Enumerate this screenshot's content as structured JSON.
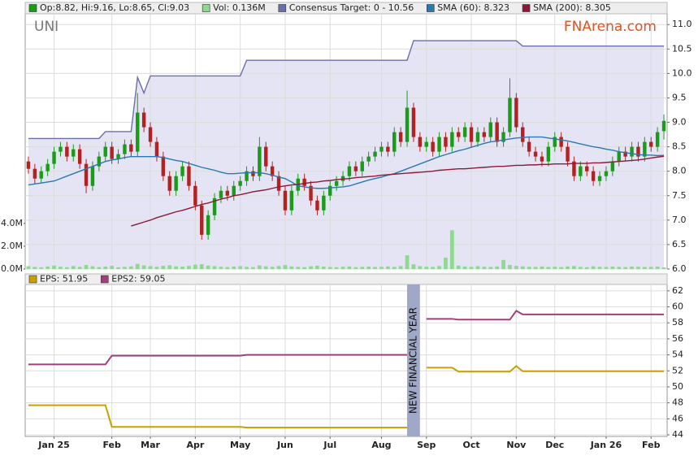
{
  "chart_data": [
    {
      "type": "candlestick",
      "ticker": "UNI",
      "watermark": "FNArena.com",
      "candles_name": "Op:8.82, Hi:9.16, Lo:8.65, Cl:9.03",
      "up_color": "#1a9b1a",
      "down_color": "#b22222",
      "open": [
        8.2,
        8.05,
        7.85,
        8.0,
        8.15,
        8.4,
        8.5,
        8.3,
        8.45,
        8.15,
        7.7,
        8.1,
        8.3,
        8.5,
        8.25,
        8.35,
        8.55,
        8.4,
        9.2,
        8.9,
        8.6,
        8.3,
        7.9,
        7.6,
        7.9,
        8.1,
        7.7,
        7.3,
        6.7,
        7.1,
        7.45,
        7.6,
        7.5,
        7.7,
        7.8,
        8.0,
        7.9,
        8.5,
        8.1,
        7.9,
        7.6,
        7.2,
        7.6,
        7.85,
        7.7,
        7.4,
        7.2,
        7.5,
        7.7,
        7.8,
        7.9,
        8.1,
        8.0,
        8.2,
        8.3,
        8.4,
        8.5,
        8.4,
        8.8,
        8.6,
        9.3,
        8.7,
        8.5,
        8.6,
        8.4,
        8.7,
        8.5,
        8.8,
        8.7,
        8.9,
        8.6,
        8.8,
        8.7,
        9.0,
        8.6,
        8.8,
        9.5,
        8.9,
        8.6,
        8.4,
        8.3,
        8.2,
        8.5,
        8.7,
        8.5,
        8.2,
        7.9,
        8.1,
        8.0,
        7.8,
        7.9,
        8.0,
        8.2,
        8.4,
        8.3,
        8.5,
        8.3,
        8.6,
        8.5,
        8.82
      ],
      "high": [
        8.3,
        8.15,
        8.1,
        8.25,
        8.5,
        8.6,
        8.6,
        8.55,
        8.55,
        8.25,
        8.2,
        8.4,
        8.6,
        8.6,
        8.45,
        8.65,
        8.65,
        9.6,
        9.3,
        9.0,
        8.7,
        8.4,
        8.0,
        8.0,
        8.2,
        8.2,
        7.8,
        7.4,
        7.2,
        7.55,
        7.7,
        7.7,
        7.8,
        7.9,
        8.1,
        8.1,
        8.7,
        8.6,
        8.2,
        8.0,
        7.7,
        7.7,
        7.95,
        7.95,
        7.8,
        7.5,
        7.6,
        7.8,
        7.9,
        8.0,
        8.2,
        8.2,
        8.3,
        8.4,
        8.5,
        8.6,
        8.6,
        8.9,
        8.9,
        9.65,
        9.4,
        8.8,
        8.7,
        8.7,
        8.8,
        8.8,
        8.9,
        8.9,
        9.0,
        9.0,
        8.9,
        8.9,
        9.1,
        9.1,
        8.9,
        9.9,
        9.6,
        9.0,
        8.7,
        8.5,
        8.4,
        8.6,
        8.8,
        8.8,
        8.6,
        8.3,
        8.2,
        8.2,
        8.1,
        8.0,
        8.1,
        8.3,
        8.5,
        8.5,
        8.6,
        8.6,
        8.7,
        8.7,
        8.9,
        9.16
      ],
      "low": [
        7.95,
        7.75,
        7.75,
        7.9,
        8.05,
        8.3,
        8.2,
        8.2,
        8.05,
        7.55,
        7.6,
        8.0,
        8.2,
        8.15,
        8.15,
        8.25,
        8.3,
        8.3,
        8.8,
        8.5,
        8.2,
        7.8,
        7.5,
        7.5,
        7.8,
        7.6,
        7.2,
        6.6,
        6.6,
        7.0,
        7.35,
        7.4,
        7.4,
        7.6,
        7.7,
        7.8,
        7.8,
        8.0,
        7.8,
        7.5,
        7.1,
        7.1,
        7.5,
        7.6,
        7.3,
        7.1,
        7.1,
        7.4,
        7.6,
        7.7,
        7.8,
        7.9,
        7.9,
        8.1,
        8.2,
        8.3,
        8.3,
        8.3,
        8.5,
        8.5,
        8.6,
        8.4,
        8.4,
        8.3,
        8.3,
        8.4,
        8.4,
        8.6,
        8.6,
        8.5,
        8.5,
        8.6,
        8.6,
        8.5,
        8.5,
        8.7,
        8.8,
        8.5,
        8.3,
        8.2,
        8.1,
        8.1,
        8.4,
        8.4,
        8.1,
        7.8,
        7.8,
        7.9,
        7.7,
        7.7,
        7.8,
        7.9,
        8.1,
        8.2,
        8.2,
        8.2,
        8.2,
        8.4,
        8.4,
        8.65
      ],
      "close": [
        8.05,
        7.85,
        8.0,
        8.15,
        8.4,
        8.5,
        8.3,
        8.45,
        8.15,
        7.7,
        8.1,
        8.3,
        8.5,
        8.25,
        8.35,
        8.55,
        8.4,
        9.2,
        8.9,
        8.6,
        8.3,
        7.9,
        7.6,
        7.9,
        8.1,
        7.7,
        7.3,
        6.7,
        7.1,
        7.45,
        7.6,
        7.5,
        7.7,
        7.8,
        8.0,
        7.9,
        8.5,
        8.1,
        7.9,
        7.6,
        7.2,
        7.6,
        7.85,
        7.7,
        7.4,
        7.2,
        7.5,
        7.7,
        7.8,
        7.9,
        8.1,
        8.0,
        8.2,
        8.3,
        8.4,
        8.5,
        8.4,
        8.8,
        8.6,
        9.3,
        8.7,
        8.5,
        8.6,
        8.4,
        8.7,
        8.5,
        8.8,
        8.7,
        8.9,
        8.6,
        8.8,
        8.7,
        9.0,
        8.6,
        8.8,
        9.5,
        8.9,
        8.6,
        8.4,
        8.3,
        8.2,
        8.5,
        8.7,
        8.5,
        8.2,
        7.9,
        8.1,
        8.0,
        7.8,
        7.9,
        8.0,
        8.2,
        8.4,
        8.3,
        8.5,
        8.3,
        8.6,
        8.5,
        8.8,
        9.03
      ],
      "volume": {
        "name": "Vol: 0.136M",
        "color": "#90d890",
        "values": [
          250000,
          180000,
          150000,
          220000,
          300000,
          200000,
          160000,
          260000,
          190000,
          350000,
          240000,
          170000,
          210000,
          280000,
          150000,
          190000,
          230000,
          450000,
          320000,
          260000,
          200000,
          280000,
          330000,
          240000,
          210000,
          270000,
          380000,
          420000,
          300000,
          250000,
          200000,
          180000,
          220000,
          260000,
          190000,
          170000,
          310000,
          240000,
          200000,
          260000,
          340000,
          230000,
          190000,
          170000,
          250000,
          290000,
          210000,
          180000,
          160000,
          200000,
          220000,
          170000,
          190000,
          210000,
          180000,
          200000,
          230000,
          190000,
          260000,
          1200000,
          420000,
          250000,
          200000,
          180000,
          260000,
          1000000,
          3400000,
          300000,
          220000,
          190000,
          250000,
          200000,
          180000,
          230000,
          800000,
          360000,
          280000,
          240000,
          200000,
          190000,
          220000,
          180000,
          200000,
          170000,
          230000,
          260000,
          190000,
          160000,
          240000,
          200000,
          180000,
          210000,
          190000,
          170000,
          220000,
          200000,
          180000,
          190000,
          210000,
          136000
        ],
        "ylim": [
          0,
          22400000
        ],
        "yticks": [
          {
            "value": 0,
            "label": "0.0M"
          },
          {
            "value": 2000000,
            "label": "2.0M"
          },
          {
            "value": 4000000,
            "label": "4.0M"
          }
        ]
      },
      "series": [
        {
          "name": "Consensus Target: 0 - 10.56",
          "color": "#6a6fa8",
          "fill": "#e4e4f4",
          "values": [
            8.67,
            8.67,
            8.67,
            8.67,
            8.67,
            8.67,
            8.67,
            8.67,
            8.67,
            8.67,
            8.67,
            8.67,
            8.81,
            8.81,
            8.81,
            8.81,
            8.81,
            9.92,
            9.6,
            9.95,
            9.95,
            9.95,
            9.95,
            9.95,
            9.95,
            9.95,
            9.95,
            9.95,
            9.95,
            9.95,
            9.95,
            9.95,
            9.95,
            9.95,
            10.27,
            10.27,
            10.27,
            10.27,
            10.27,
            10.27,
            10.27,
            10.27,
            10.27,
            10.27,
            10.27,
            10.27,
            10.27,
            10.27,
            10.27,
            10.27,
            10.27,
            10.27,
            10.27,
            10.27,
            10.27,
            10.27,
            10.27,
            10.27,
            10.27,
            10.27,
            10.67,
            10.67,
            10.67,
            10.67,
            10.67,
            10.67,
            10.67,
            10.67,
            10.67,
            10.67,
            10.67,
            10.67,
            10.67,
            10.67,
            10.67,
            10.67,
            10.67,
            10.56,
            10.56,
            10.56,
            10.56,
            10.56,
            10.56,
            10.56,
            10.56,
            10.56,
            10.56,
            10.56,
            10.56,
            10.56,
            10.56,
            10.56,
            10.56,
            10.56,
            10.56,
            10.56,
            10.56,
            10.56,
            10.56,
            10.56
          ]
        },
        {
          "name": "SMA (60): 8.323",
          "color": "#2a7ab0",
          "values": [
            7.72,
            7.74,
            7.76,
            7.78,
            7.8,
            7.85,
            7.9,
            7.95,
            8.0,
            8.05,
            8.1,
            8.15,
            8.2,
            8.23,
            8.25,
            8.28,
            8.3,
            8.3,
            8.3,
            8.3,
            8.3,
            8.28,
            8.25,
            8.22,
            8.2,
            8.16,
            8.12,
            8.08,
            8.05,
            8.02,
            7.98,
            7.95,
            7.95,
            7.96,
            7.97,
            7.97,
            7.97,
            7.95,
            7.92,
            7.88,
            7.85,
            7.78,
            7.7,
            7.68,
            7.66,
            7.65,
            7.65,
            7.66,
            7.67,
            7.68,
            7.7,
            7.74,
            7.78,
            7.82,
            7.85,
            7.88,
            7.92,
            7.95,
            8.0,
            8.05,
            8.1,
            8.15,
            8.2,
            8.25,
            8.3,
            8.34,
            8.38,
            8.42,
            8.45,
            8.49,
            8.53,
            8.57,
            8.6,
            8.62,
            8.64,
            8.66,
            8.68,
            8.69,
            8.7,
            8.7,
            8.7,
            8.68,
            8.66,
            8.64,
            8.62,
            8.59,
            8.56,
            8.53,
            8.5,
            8.48,
            8.45,
            8.43,
            8.4,
            8.38,
            8.36,
            8.34,
            8.33,
            8.33,
            8.32,
            8.323
          ]
        },
        {
          "name": "SMA (200): 8.305",
          "color": "#8b1a3a",
          "values": [
            null,
            null,
            null,
            null,
            null,
            null,
            null,
            null,
            null,
            null,
            null,
            null,
            null,
            null,
            null,
            null,
            6.88,
            6.92,
            6.96,
            7.0,
            7.05,
            7.09,
            7.13,
            7.17,
            7.2,
            7.24,
            7.28,
            7.32,
            7.35,
            7.39,
            7.43,
            7.46,
            7.5,
            7.52,
            7.55,
            7.58,
            7.6,
            7.62,
            7.65,
            7.68,
            7.7,
            7.72,
            7.73,
            7.75,
            7.77,
            7.78,
            7.8,
            7.81,
            7.83,
            7.84,
            7.85,
            7.87,
            7.88,
            7.89,
            7.9,
            7.92,
            7.93,
            7.94,
            7.95,
            7.96,
            7.97,
            7.98,
            7.99,
            8.0,
            8.02,
            8.03,
            8.04,
            8.05,
            8.05,
            8.06,
            8.07,
            8.08,
            8.09,
            8.1,
            8.1,
            8.11,
            8.12,
            8.12,
            8.13,
            8.13,
            8.14,
            8.14,
            8.15,
            8.15,
            8.15,
            8.16,
            8.16,
            8.16,
            8.17,
            8.17,
            8.18,
            8.19,
            8.2,
            8.21,
            8.22,
            8.23,
            8.25,
            8.27,
            8.29,
            8.305
          ]
        }
      ],
      "ylim": [
        6,
        11.22
      ],
      "yticks": [
        {
          "value": 6,
          "label": "6.0"
        },
        6.5,
        {
          "value": 7,
          "label": "7.0"
        },
        7.5,
        {
          "value": 8,
          "label": "8.0"
        },
        8.5,
        {
          "value": 9,
          "label": "9.0"
        },
        9.5,
        {
          "value": 10,
          "label": "10.0"
        },
        10.5,
        {
          "value": 11,
          "label": "11.0"
        }
      ],
      "grid": true
    },
    {
      "type": "line",
      "annotation": "NEW FINANCIAL YEAR",
      "categories": [
        null,
        null,
        null,
        null,
        "Jan 25",
        null,
        null,
        null,
        null,
        null,
        null,
        null,
        null,
        "Feb",
        null,
        null,
        null,
        null,
        null,
        "Mar",
        null,
        null,
        null,
        null,
        null,
        null,
        "Apr",
        null,
        null,
        null,
        null,
        null,
        null,
        "May",
        null,
        null,
        null,
        null,
        null,
        null,
        "Jun",
        null,
        null,
        null,
        null,
        null,
        null,
        "Jul",
        null,
        null,
        null,
        null,
        null,
        null,
        null,
        "Aug",
        null,
        null,
        null,
        null,
        null,
        null,
        "Sep",
        null,
        null,
        null,
        null,
        null,
        null,
        "Oct",
        null,
        null,
        null,
        null,
        null,
        null,
        "Nov",
        null,
        null,
        null,
        null,
        null,
        "Dec",
        null,
        null,
        null,
        null,
        null,
        null,
        null,
        "Jan 26",
        null,
        null,
        null,
        null,
        null,
        null,
        "Feb",
        null,
        null
      ],
      "series": [
        {
          "name": "EPS: 51.95",
          "color": "#c8a000",
          "values": [
            47.7,
            47.7,
            47.7,
            47.7,
            47.7,
            47.7,
            47.7,
            47.7,
            47.7,
            47.7,
            47.7,
            47.7,
            47.7,
            45.0,
            45.0,
            45.0,
            45.0,
            45.0,
            45.0,
            45.0,
            45.0,
            45.0,
            45.0,
            45.0,
            45.0,
            45.0,
            45.0,
            45.0,
            45.0,
            45.0,
            45.0,
            45.0,
            45.0,
            45.0,
            44.9,
            44.9,
            44.9,
            44.9,
            44.9,
            44.9,
            44.9,
            44.9,
            44.9,
            44.9,
            44.9,
            44.9,
            44.9,
            44.9,
            44.9,
            44.9,
            44.9,
            44.9,
            44.9,
            44.9,
            44.9,
            44.9,
            44.9,
            44.9,
            44.9,
            44.9,
            null,
            null,
            52.4,
            52.4,
            52.4,
            52.4,
            52.4,
            51.9,
            51.9,
            51.9,
            51.9,
            51.9,
            51.9,
            51.9,
            51.9,
            51.9,
            52.6,
            51.95,
            51.95,
            51.95,
            51.95,
            51.95,
            51.95,
            51.95,
            51.95,
            51.95,
            51.95,
            51.95,
            51.95,
            51.95,
            51.95,
            51.95,
            51.95,
            51.95,
            51.95,
            51.95,
            51.95,
            51.95,
            51.95,
            51.95
          ]
        },
        {
          "name": "EPS2: 59.05",
          "color": "#a0407a",
          "values": [
            52.8,
            52.8,
            52.8,
            52.8,
            52.8,
            52.8,
            52.8,
            52.8,
            52.8,
            52.8,
            52.8,
            52.8,
            52.8,
            53.9,
            53.9,
            53.9,
            53.9,
            53.9,
            53.9,
            53.9,
            53.9,
            53.9,
            53.9,
            53.9,
            53.9,
            53.9,
            53.9,
            53.9,
            53.9,
            53.9,
            53.9,
            53.9,
            53.9,
            53.9,
            54.0,
            54.0,
            54.0,
            54.0,
            54.0,
            54.0,
            54.0,
            54.0,
            54.0,
            54.0,
            54.0,
            54.0,
            54.0,
            54.0,
            54.0,
            54.0,
            54.0,
            54.0,
            54.0,
            54.0,
            54.0,
            54.0,
            54.0,
            54.0,
            54.0,
            54.0,
            null,
            null,
            58.5,
            58.5,
            58.5,
            58.5,
            58.5,
            58.4,
            58.4,
            58.4,
            58.4,
            58.4,
            58.4,
            58.4,
            58.4,
            58.4,
            59.5,
            59.05,
            59.05,
            59.05,
            59.05,
            59.05,
            59.05,
            59.05,
            59.05,
            59.05,
            59.05,
            59.05,
            59.05,
            59.05,
            59.05,
            59.05,
            59.05,
            59.05,
            59.05,
            59.05,
            59.05,
            59.05,
            59.05,
            59.05
          ]
        }
      ],
      "ylim": [
        43.8,
        62.8
      ],
      "yticks": [
        44,
        46,
        48,
        50,
        52,
        54,
        56,
        58,
        60,
        62
      ],
      "grid": true
    }
  ]
}
